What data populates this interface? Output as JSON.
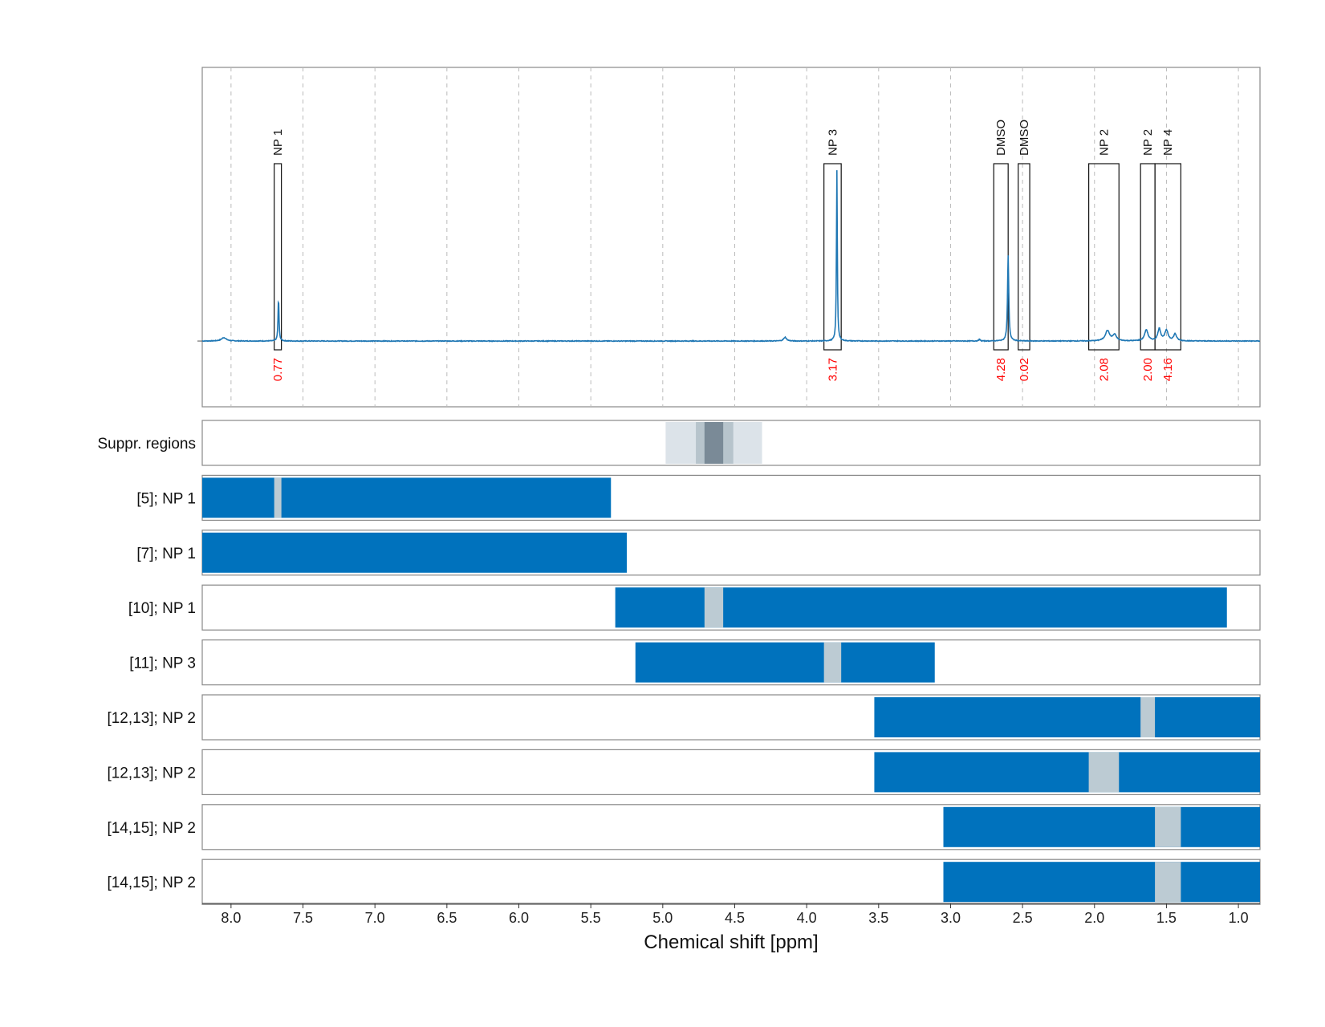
{
  "chart_data": {
    "type": "nmr-spectrum-with-range-tracks",
    "xlabel": "Chemical shift [ppm]",
    "xlim": [
      8.2,
      0.85
    ],
    "x_ticks": [
      8.0,
      7.5,
      7.0,
      6.5,
      6.0,
      5.5,
      5.0,
      4.5,
      4.0,
      3.5,
      3.0,
      2.5,
      2.0,
      1.5,
      1.0
    ],
    "x_tick_labels": [
      "8.0",
      "7.5",
      "7.0",
      "6.5",
      "6.0",
      "5.5",
      "5.0",
      "4.5",
      "4.0",
      "3.5",
      "3.0",
      "2.5",
      "2.0",
      "1.5",
      "1.0"
    ],
    "vertical_gridlines": "dashed at each x tick",
    "colors": {
      "spectrum": "#1f77b4",
      "bar": "#0072bd",
      "gap": "#bccbd3",
      "integral_label": "#ff0000",
      "frame": "#888888",
      "grid": "#bbbbbb"
    },
    "spectrum": {
      "baseline": 0,
      "ylim": [
        -0.38,
        1.0
      ],
      "peaks": [
        {
          "center": 8.05,
          "height": 0.02,
          "width": 0.02
        },
        {
          "center": 7.67,
          "height": 0.25,
          "width": 0.004
        },
        {
          "center": 4.15,
          "height": 0.022,
          "width": 0.012
        },
        {
          "center": 3.79,
          "height": 1.0,
          "width": 0.0035
        },
        {
          "center": 2.8,
          "height": 0.01,
          "width": 0.006
        },
        {
          "center": 2.6,
          "height": 0.5,
          "width": 0.005
        },
        {
          "center": 1.91,
          "height": 0.06,
          "width": 0.018
        },
        {
          "center": 1.86,
          "height": 0.035,
          "width": 0.015
        },
        {
          "center": 1.64,
          "height": 0.065,
          "width": 0.014
        },
        {
          "center": 1.55,
          "height": 0.07,
          "width": 0.012
        },
        {
          "center": 1.5,
          "height": 0.06,
          "width": 0.014
        },
        {
          "center": 1.44,
          "height": 0.04,
          "width": 0.012
        }
      ]
    },
    "integration_regions": [
      {
        "label": "NP 1",
        "integral": "0.77",
        "x_from": 7.7,
        "x_to": 7.65
      },
      {
        "label": "NP 3",
        "integral": "3.17",
        "x_from": 3.88,
        "x_to": 3.76
      },
      {
        "label": "DMSO",
        "integral": "4.28",
        "x_from": 2.7,
        "x_to": 2.6
      },
      {
        "label": "DMSO",
        "integral": "0.02",
        "x_from": 2.53,
        "x_to": 2.45
      },
      {
        "label": "NP 2",
        "integral": "2.08",
        "x_from": 2.04,
        "x_to": 1.83
      },
      {
        "label": "NP 2",
        "integral": "2.00",
        "x_from": 1.68,
        "x_to": 1.58
      },
      {
        "label": "NP 4",
        "integral": "4.16",
        "x_from": 1.58,
        "x_to": 1.4
      }
    ],
    "suppression_regions": {
      "label": "Suppr. regions",
      "bands": [
        {
          "x_from": 4.98,
          "x_to": 4.31,
          "shade": "#dce3e9"
        },
        {
          "x_from": 4.77,
          "x_to": 4.51,
          "shade": "#b7c4cc"
        },
        {
          "x_from": 4.71,
          "x_to": 4.58,
          "shade": "#7a8a97"
        }
      ]
    },
    "tracks": [
      {
        "label": "[5]; NP 1",
        "x_from": 8.2,
        "x_to": 5.36,
        "gaps": [
          [
            7.7,
            7.65
          ]
        ]
      },
      {
        "label": "[7]; NP 1",
        "x_from": 8.2,
        "x_to": 5.25,
        "gaps": []
      },
      {
        "label": "[10]; NP 1",
        "x_from": 5.33,
        "x_to": 1.08,
        "gaps": [
          [
            4.71,
            4.58
          ]
        ]
      },
      {
        "label": "[11]; NP 3",
        "x_from": 5.19,
        "x_to": 3.11,
        "gaps": [
          [
            3.88,
            3.76
          ]
        ]
      },
      {
        "label": "[12,13]; NP 2",
        "x_from": 3.53,
        "x_to": 0.85,
        "gaps": [
          [
            1.68,
            1.58
          ]
        ]
      },
      {
        "label": "[12,13]; NP 2",
        "x_from": 3.53,
        "x_to": 0.85,
        "gaps": [
          [
            2.04,
            1.83
          ]
        ]
      },
      {
        "label": "[14,15]; NP 2",
        "x_from": 3.05,
        "x_to": 0.85,
        "gaps": [
          [
            1.58,
            1.4
          ]
        ]
      },
      {
        "label": "[14,15]; NP 2",
        "x_from": 3.05,
        "x_to": 0.85,
        "gaps": [
          [
            1.58,
            1.4
          ]
        ]
      }
    ]
  }
}
